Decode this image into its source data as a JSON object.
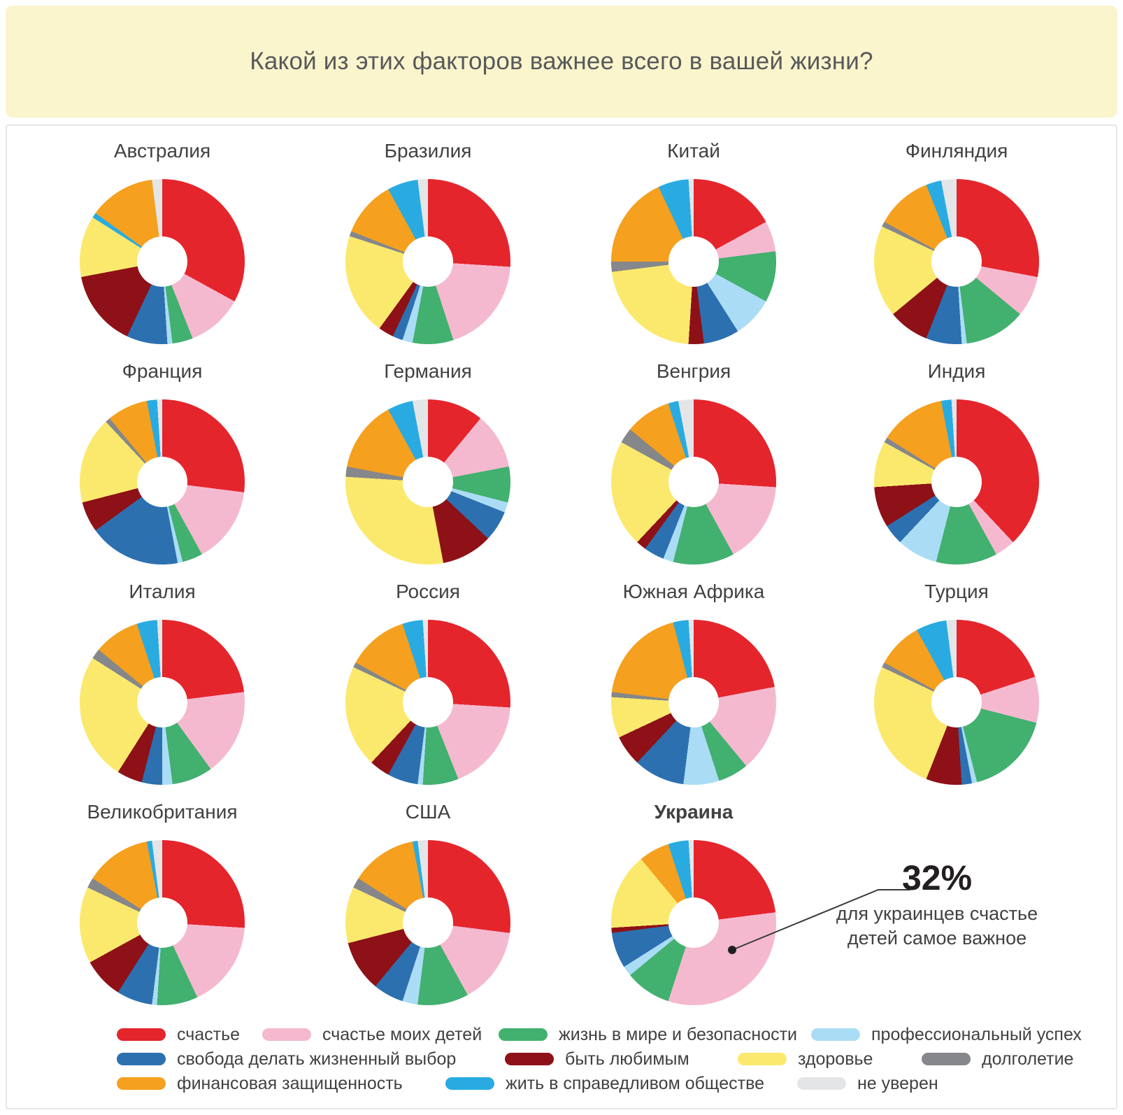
{
  "header": {
    "title": "Какой из этих факторов важнее всего в вашей жизни?",
    "background_color": "#FAF5CD"
  },
  "chart_data": {
    "type": "pie",
    "variant": "donut-grid",
    "unit": "%",
    "legend_position": "bottom",
    "categories": [
      {
        "key": "happiness",
        "label": "счастье",
        "color": "#E5252C"
      },
      {
        "key": "children",
        "label": "счастье моих детей",
        "color": "#F5B9CF"
      },
      {
        "key": "peace",
        "label": "жизнь в мире и безопасности",
        "color": "#42B06F"
      },
      {
        "key": "success",
        "label": "профессиональный успех",
        "color": "#ABDCF5"
      },
      {
        "key": "freedom",
        "label": "свобода делать жизненный выбор",
        "color": "#2C70B0"
      },
      {
        "key": "loved",
        "label": "быть любимым",
        "color": "#8E1117"
      },
      {
        "key": "health",
        "label": "здоровье",
        "color": "#FBE96E"
      },
      {
        "key": "longevity",
        "label": "долголетие",
        "color": "#85878A"
      },
      {
        "key": "financial",
        "label": "финансовая защищенность",
        "color": "#F5A01E"
      },
      {
        "key": "justice",
        "label": "жить в справедливом обществе",
        "color": "#29ABE2"
      },
      {
        "key": "unsure",
        "label": "не уверен",
        "color": "#E4E5E7"
      }
    ],
    "charts": [
      {
        "name": "Австралия",
        "bold": false,
        "segments": [
          [
            "happiness",
            33
          ],
          [
            "children",
            11
          ],
          [
            "peace",
            4
          ],
          [
            "success",
            1
          ],
          [
            "freedom",
            8
          ],
          [
            "loved",
            15
          ],
          [
            "health",
            12
          ],
          [
            "justice",
            1
          ],
          [
            "financial",
            13
          ],
          [
            "unsure",
            2
          ]
        ]
      },
      {
        "name": "Бразилия",
        "bold": false,
        "segments": [
          [
            "happiness",
            26
          ],
          [
            "children",
            19
          ],
          [
            "peace",
            8
          ],
          [
            "success",
            2
          ],
          [
            "freedom",
            2
          ],
          [
            "loved",
            3
          ],
          [
            "health",
            20
          ],
          [
            "longevity",
            1
          ],
          [
            "financial",
            11
          ],
          [
            "justice",
            6
          ],
          [
            "unsure",
            2
          ]
        ]
      },
      {
        "name": "Китай",
        "bold": false,
        "segments": [
          [
            "happiness",
            17
          ],
          [
            "children",
            6
          ],
          [
            "peace",
            10
          ],
          [
            "success",
            8
          ],
          [
            "freedom",
            7
          ],
          [
            "loved",
            3
          ],
          [
            "health",
            22
          ],
          [
            "longevity",
            2
          ],
          [
            "financial",
            18
          ],
          [
            "justice",
            6
          ],
          [
            "unsure",
            1
          ]
        ]
      },
      {
        "name": "Финляндия",
        "bold": false,
        "segments": [
          [
            "happiness",
            28
          ],
          [
            "children",
            8
          ],
          [
            "peace",
            12
          ],
          [
            "success",
            1
          ],
          [
            "freedom",
            7
          ],
          [
            "loved",
            8
          ],
          [
            "health",
            18
          ],
          [
            "longevity",
            1
          ],
          [
            "financial",
            11
          ],
          [
            "justice",
            3
          ],
          [
            "unsure",
            3
          ]
        ]
      },
      {
        "name": "Франция",
        "bold": false,
        "segments": [
          [
            "happiness",
            27
          ],
          [
            "children",
            15
          ],
          [
            "peace",
            4
          ],
          [
            "success",
            1
          ],
          [
            "freedom",
            18
          ],
          [
            "loved",
            6
          ],
          [
            "health",
            17
          ],
          [
            "longevity",
            1
          ],
          [
            "financial",
            8
          ],
          [
            "justice",
            2
          ],
          [
            "unsure",
            1
          ]
        ]
      },
      {
        "name": "Германия",
        "bold": false,
        "segments": [
          [
            "happiness",
            11
          ],
          [
            "children",
            11
          ],
          [
            "peace",
            7
          ],
          [
            "success",
            2
          ],
          [
            "freedom",
            6
          ],
          [
            "loved",
            10
          ],
          [
            "health",
            29
          ],
          [
            "longevity",
            2
          ],
          [
            "financial",
            14
          ],
          [
            "justice",
            5
          ],
          [
            "unsure",
            3
          ]
        ]
      },
      {
        "name": "Венгрия",
        "bold": false,
        "segments": [
          [
            "happiness",
            26
          ],
          [
            "children",
            16
          ],
          [
            "peace",
            12
          ],
          [
            "success",
            2
          ],
          [
            "freedom",
            4
          ],
          [
            "loved",
            2
          ],
          [
            "health",
            21
          ],
          [
            "longevity",
            3
          ],
          [
            "financial",
            9
          ],
          [
            "justice",
            2
          ],
          [
            "unsure",
            3
          ]
        ]
      },
      {
        "name": "Индия",
        "bold": false,
        "segments": [
          [
            "happiness",
            38
          ],
          [
            "children",
            4
          ],
          [
            "peace",
            12
          ],
          [
            "success",
            8
          ],
          [
            "freedom",
            4
          ],
          [
            "loved",
            8
          ],
          [
            "health",
            9
          ],
          [
            "longevity",
            1
          ],
          [
            "financial",
            13
          ],
          [
            "justice",
            2
          ],
          [
            "unsure",
            1
          ]
        ]
      },
      {
        "name": "Италия",
        "bold": false,
        "segments": [
          [
            "happiness",
            23
          ],
          [
            "children",
            17
          ],
          [
            "peace",
            8
          ],
          [
            "success",
            2
          ],
          [
            "freedom",
            4
          ],
          [
            "loved",
            5
          ],
          [
            "health",
            25
          ],
          [
            "longevity",
            2
          ],
          [
            "financial",
            9
          ],
          [
            "justice",
            4
          ],
          [
            "unsure",
            1
          ]
        ]
      },
      {
        "name": "Россия",
        "bold": false,
        "segments": [
          [
            "happiness",
            26
          ],
          [
            "children",
            18
          ],
          [
            "peace",
            7
          ],
          [
            "success",
            1
          ],
          [
            "freedom",
            6
          ],
          [
            "loved",
            4
          ],
          [
            "health",
            20
          ],
          [
            "longevity",
            1
          ],
          [
            "financial",
            12
          ],
          [
            "justice",
            4
          ],
          [
            "unsure",
            1
          ]
        ]
      },
      {
        "name": "Южная Африка",
        "bold": false,
        "segments": [
          [
            "happiness",
            22
          ],
          [
            "children",
            17
          ],
          [
            "peace",
            6
          ],
          [
            "success",
            7
          ],
          [
            "freedom",
            10
          ],
          [
            "loved",
            6
          ],
          [
            "health",
            8
          ],
          [
            "longevity",
            1
          ],
          [
            "financial",
            19
          ],
          [
            "justice",
            3
          ],
          [
            "unsure",
            1
          ]
        ]
      },
      {
        "name": "Турция",
        "bold": false,
        "segments": [
          [
            "happiness",
            20
          ],
          [
            "children",
            9
          ],
          [
            "peace",
            17
          ],
          [
            "success",
            1
          ],
          [
            "freedom",
            2
          ],
          [
            "loved",
            7
          ],
          [
            "health",
            26
          ],
          [
            "longevity",
            1
          ],
          [
            "financial",
            9
          ],
          [
            "justice",
            6
          ],
          [
            "unsure",
            2
          ]
        ]
      },
      {
        "name": "Великобритания",
        "bold": false,
        "segments": [
          [
            "happiness",
            26
          ],
          [
            "children",
            17
          ],
          [
            "peace",
            8
          ],
          [
            "success",
            1
          ],
          [
            "freedom",
            7
          ],
          [
            "loved",
            8
          ],
          [
            "health",
            15
          ],
          [
            "longevity",
            2
          ],
          [
            "financial",
            13
          ],
          [
            "justice",
            1
          ],
          [
            "unsure",
            2
          ]
        ]
      },
      {
        "name": "США",
        "bold": false,
        "segments": [
          [
            "happiness",
            27
          ],
          [
            "children",
            15
          ],
          [
            "peace",
            10
          ],
          [
            "success",
            3
          ],
          [
            "freedom",
            6
          ],
          [
            "loved",
            10
          ],
          [
            "health",
            11
          ],
          [
            "longevity",
            2
          ],
          [
            "financial",
            13
          ],
          [
            "justice",
            1
          ],
          [
            "unsure",
            2
          ]
        ]
      },
      {
        "name": "Украина",
        "bold": true,
        "segments": [
          [
            "happiness",
            23
          ],
          [
            "children",
            32
          ],
          [
            "peace",
            9
          ],
          [
            "success",
            2
          ],
          [
            "freedom",
            7
          ],
          [
            "loved",
            1
          ],
          [
            "health",
            15
          ],
          [
            "financial",
            6
          ],
          [
            "justice",
            4
          ],
          [
            "unsure",
            1
          ]
        ]
      }
    ]
  },
  "legend": {
    "rows": [
      [
        "happiness",
        "children",
        "peace",
        "success"
      ],
      [
        "freedom",
        "loved",
        "health",
        "longevity"
      ],
      [
        "financial",
        "justice",
        "unsure"
      ]
    ]
  },
  "annotation": {
    "value": "32%",
    "text": "для украинцев счастье детей самое важное",
    "target_chart": "Украина",
    "target_category": "children"
  }
}
